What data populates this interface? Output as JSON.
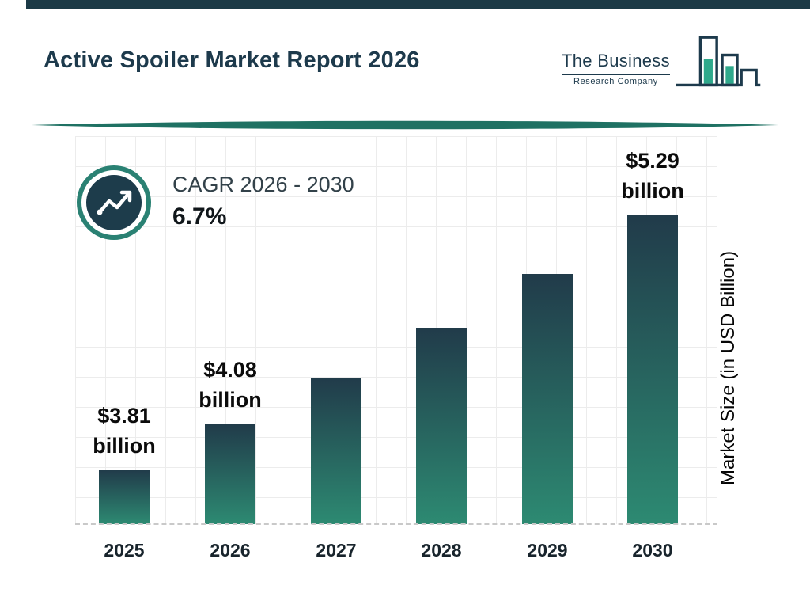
{
  "page": {
    "title": "Active Spoiler Market Report 2026"
  },
  "logo": {
    "line1": "The Business",
    "line2": "Research Company"
  },
  "cagr": {
    "label": "CAGR 2026 - 2030",
    "value": "6.7%"
  },
  "colors": {
    "accent_navy": "#1d3a4c",
    "accent_teal": "#1f7163",
    "logo_green": "#2fa98c",
    "bar_gradient_top": "#213b4a",
    "bar_gradient_bottom": "#2d8a72"
  },
  "chart_data": {
    "type": "bar",
    "title": "Active Spoiler Market Report 2026",
    "categories": [
      "2025",
      "2026",
      "2027",
      "2028",
      "2029",
      "2030"
    ],
    "values": [
      3.81,
      4.08,
      4.35,
      4.64,
      4.95,
      5.29
    ],
    "unit": "USD Billion",
    "xlabel": "",
    "ylabel": "Market Size (in USD Billion)",
    "ylim": [
      3.5,
      5.29
    ],
    "grid": true,
    "legend": false,
    "annotations": [
      {
        "index": 0,
        "line1": "$3.81",
        "line2": "billion"
      },
      {
        "index": 1,
        "line1": "$4.08",
        "line2": "billion"
      },
      {
        "index": 5,
        "line1": "$5.29",
        "line2": "billion"
      }
    ]
  }
}
